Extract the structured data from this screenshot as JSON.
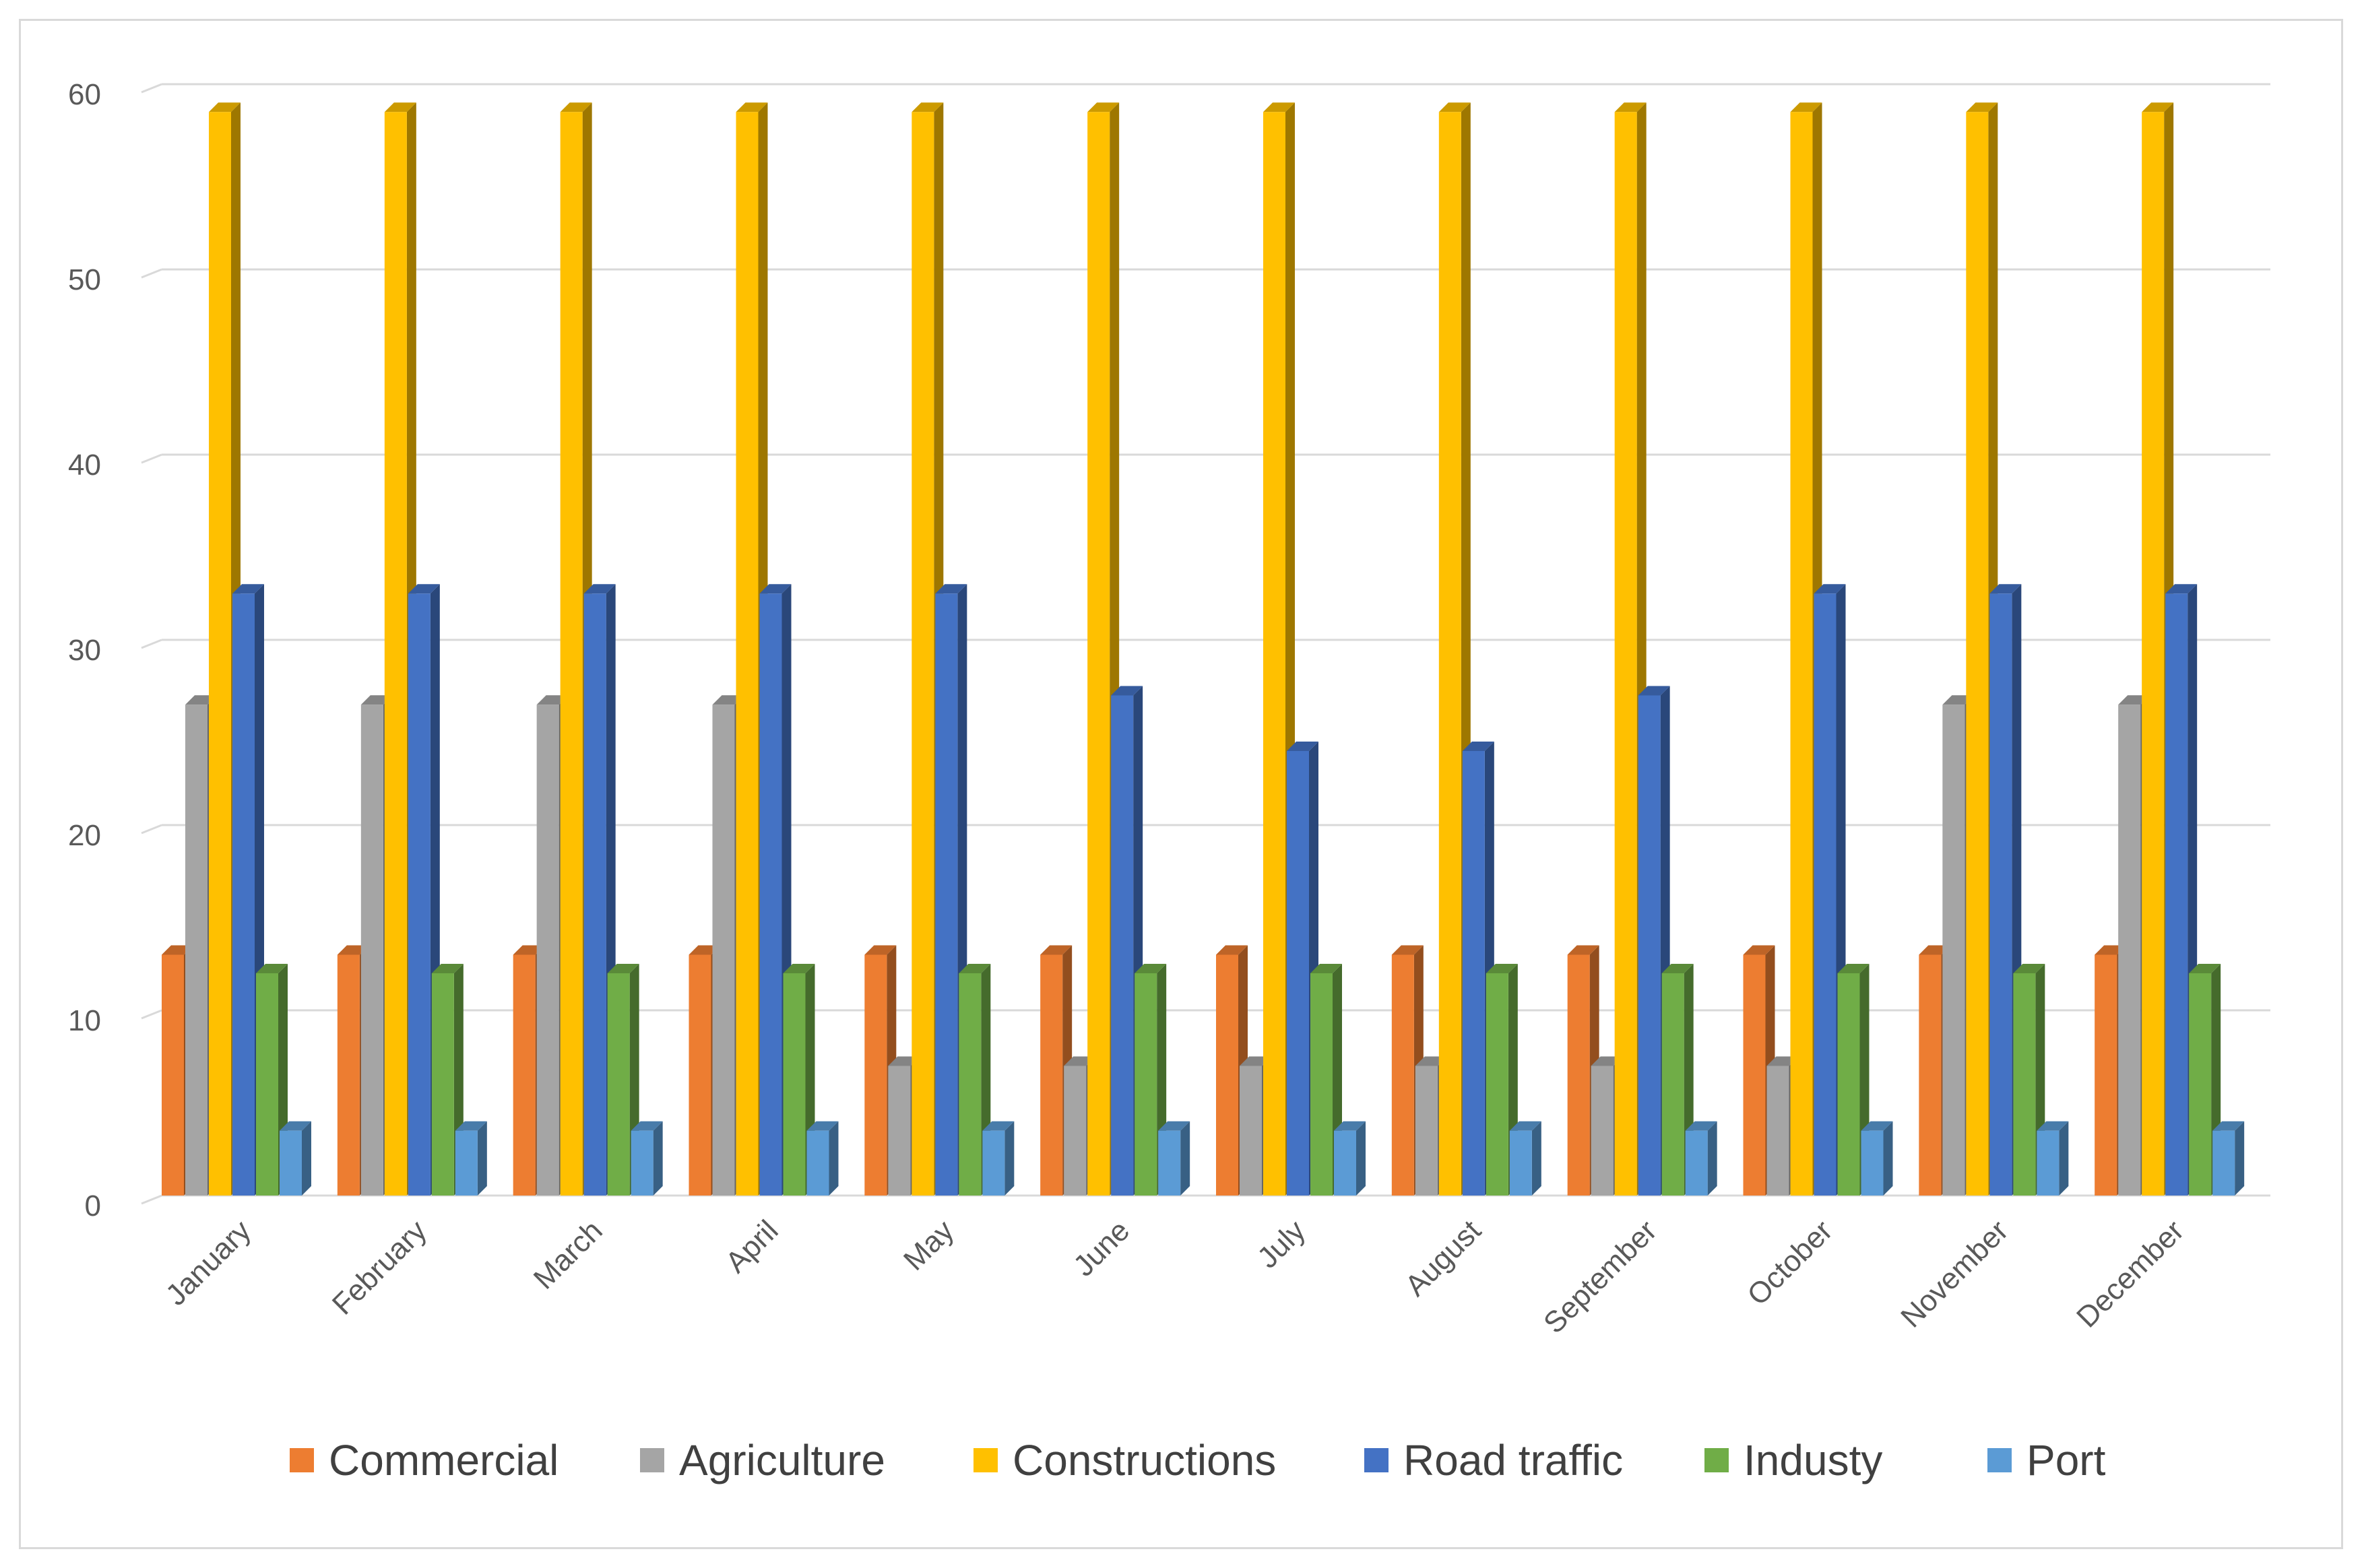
{
  "chart_data": {
    "type": "bar",
    "title": "",
    "xlabel": "",
    "ylabel": "",
    "ylim": [
      0,
      60
    ],
    "yticks": [
      0,
      10,
      20,
      30,
      40,
      50,
      60
    ],
    "grid": true,
    "legend_position": "bottom",
    "categories": [
      "January",
      "February",
      "March",
      "April",
      "May",
      "June",
      "July",
      "August",
      "September",
      "October",
      "November",
      "December"
    ],
    "series": [
      {
        "name": "Commercial",
        "color": "#ED7D31",
        "values": [
          13,
          13,
          13,
          13,
          13,
          13,
          13,
          13,
          13,
          13,
          13,
          13
        ]
      },
      {
        "name": "Agriculture",
        "color": "#A5A5A5",
        "values": [
          26.5,
          26.5,
          26.5,
          26.5,
          7,
          7,
          7,
          7,
          7,
          7,
          26.5,
          26.5
        ]
      },
      {
        "name": "Constructions",
        "color": "#FFC000",
        "values": [
          58.5,
          58.5,
          58.5,
          58.5,
          58.5,
          58.5,
          58.5,
          58.5,
          58.5,
          58.5,
          58.5,
          58.5
        ]
      },
      {
        "name": "Road traffic",
        "color": "#4472C4",
        "values": [
          32.5,
          32.5,
          32.5,
          32.5,
          32.5,
          27,
          24,
          24,
          27,
          32.5,
          32.5,
          32.5
        ]
      },
      {
        "name": "Industy",
        "color": "#70AD47",
        "values": [
          12,
          12,
          12,
          12,
          12,
          12,
          12,
          12,
          12,
          12,
          12,
          12
        ]
      },
      {
        "name": "Port",
        "color": "#5B9BD5",
        "values": [
          3.5,
          3.5,
          3.5,
          3.5,
          3.5,
          3.5,
          3.5,
          3.5,
          3.5,
          3.5,
          3.5,
          3.5
        ]
      }
    ]
  }
}
